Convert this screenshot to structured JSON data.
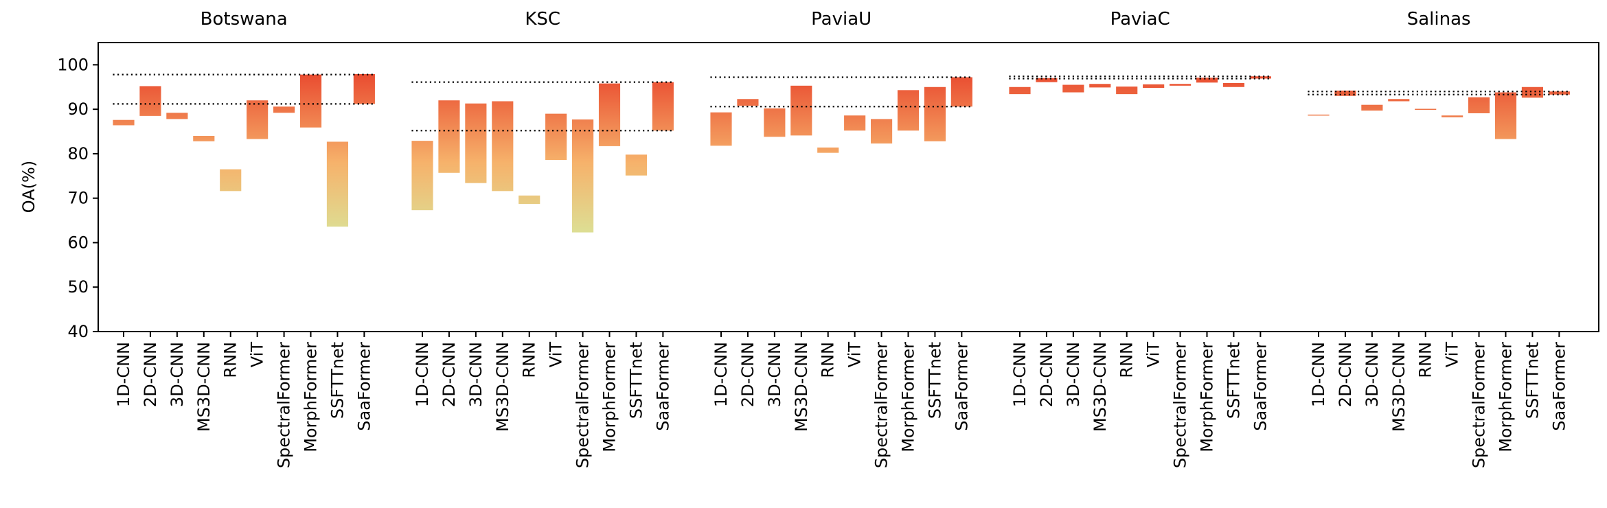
{
  "chart_data": {
    "type": "floating-bar",
    "ylabel": "OA(%)",
    "ylim": [
      40,
      105
    ],
    "yticks": [
      40,
      50,
      60,
      70,
      80,
      90,
      100
    ],
    "categories": [
      "1D-CNN",
      "2D-CNN",
      "3D-CNN",
      "MS3D-CNN",
      "RNN",
      "ViT",
      "SpectralFormer",
      "MorphFormer",
      "SSFTTnet",
      "SaaFormer"
    ],
    "color_scale": {
      "low_value": 60,
      "high_value": 100,
      "low_color": "#d9e59a",
      "mid_color": "#f6b26b",
      "high_color": "#e8412a"
    },
    "line_style": "dotted",
    "panels": [
      {
        "title": "Botswana",
        "ranges": [
          [
            86.4,
            87.6
          ],
          [
            88.5,
            95.2
          ],
          [
            87.8,
            89.2
          ],
          [
            82.8,
            84.0
          ],
          [
            71.6,
            76.5
          ],
          [
            83.3,
            92.0
          ],
          [
            89.2,
            90.6
          ],
          [
            85.9,
            97.8
          ],
          [
            63.6,
            82.7
          ],
          [
            91.2,
            97.9
          ]
        ],
        "ref_lines": [
          97.8,
          91.2
        ]
      },
      {
        "title": "KSC",
        "ranges": [
          [
            67.3,
            82.9
          ],
          [
            75.7,
            92.0
          ],
          [
            73.4,
            91.3
          ],
          [
            71.6,
            91.8
          ],
          [
            68.7,
            70.6
          ],
          [
            78.6,
            89.0
          ],
          [
            62.3,
            87.7
          ],
          [
            81.7,
            95.8
          ],
          [
            75.1,
            79.8
          ],
          [
            85.2,
            96.1
          ]
        ],
        "ref_lines": [
          96.1,
          85.2
        ]
      },
      {
        "title": "PaviaU",
        "ranges": [
          [
            81.8,
            89.3
          ],
          [
            90.8,
            92.3
          ],
          [
            83.8,
            90.2
          ],
          [
            84.1,
            95.3
          ],
          [
            80.2,
            81.4
          ],
          [
            85.2,
            88.6
          ],
          [
            82.3,
            87.8
          ],
          [
            85.2,
            94.3
          ],
          [
            82.8,
            95.0
          ],
          [
            90.6,
            97.2
          ]
        ],
        "ref_lines": [
          97.2,
          90.6
        ]
      },
      {
        "title": "PaviaC",
        "ranges": [
          [
            93.4,
            95.0
          ],
          [
            96.1,
            97.0
          ],
          [
            93.8,
            95.5
          ],
          [
            94.9,
            95.7
          ],
          [
            93.4,
            95.1
          ],
          [
            94.8,
            95.6
          ],
          [
            95.3,
            95.7
          ],
          [
            96.0,
            97.1
          ],
          [
            95.0,
            95.9
          ],
          [
            96.9,
            97.4
          ]
        ],
        "ref_lines": [
          97.4,
          96.9
        ]
      },
      {
        "title": "Salinas",
        "ranges": [
          [
            88.6,
            88.8
          ],
          [
            93.0,
            94.2
          ],
          [
            89.7,
            91.0
          ],
          [
            91.8,
            92.3
          ],
          [
            89.9,
            90.1
          ],
          [
            88.2,
            88.6
          ],
          [
            89.1,
            92.7
          ],
          [
            83.3,
            93.8
          ],
          [
            92.6,
            95.0
          ],
          [
            93.3,
            94.0
          ]
        ],
        "ref_lines": [
          94.0,
          93.3
        ]
      }
    ]
  }
}
